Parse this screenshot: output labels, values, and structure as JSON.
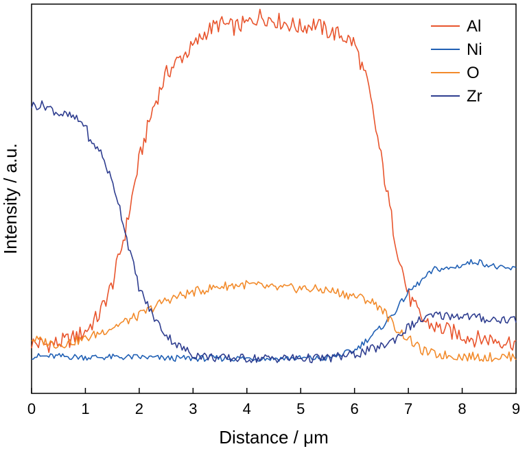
{
  "chart_data": {
    "type": "line",
    "title": "",
    "xlabel": "Distance / μm",
    "ylabel": "Intensity / a.u.",
    "xlim": [
      0,
      9
    ],
    "ylim": [
      0,
      1.0
    ],
    "x_ticks": [
      "0",
      "1",
      "2",
      "3",
      "4",
      "5",
      "6",
      "7",
      "8",
      "9"
    ],
    "y_ticks_shown": false,
    "grid": false,
    "legend_position": "top-right",
    "series": [
      {
        "name": "Al",
        "color": "#e8542c",
        "x": [
          0,
          0.25,
          0.5,
          0.75,
          1.0,
          1.25,
          1.5,
          1.75,
          2.0,
          2.25,
          2.5,
          2.75,
          3.0,
          3.25,
          3.5,
          3.75,
          4.0,
          4.25,
          4.5,
          4.75,
          5.0,
          5.25,
          5.5,
          5.75,
          6.0,
          6.25,
          6.5,
          6.75,
          7.0,
          7.25,
          7.5,
          7.75,
          8.0,
          8.25,
          8.5,
          8.75,
          9.0
        ],
        "y": [
          0.13,
          0.125,
          0.13,
          0.14,
          0.16,
          0.2,
          0.28,
          0.42,
          0.6,
          0.73,
          0.82,
          0.86,
          0.89,
          0.93,
          0.95,
          0.94,
          0.95,
          0.97,
          0.96,
          0.95,
          0.94,
          0.95,
          0.93,
          0.92,
          0.9,
          0.79,
          0.6,
          0.4,
          0.25,
          0.19,
          0.17,
          0.16,
          0.15,
          0.14,
          0.14,
          0.135,
          0.13
        ]
      },
      {
        "name": "Ni",
        "color": "#1f5fb4",
        "x": [
          0,
          0.5,
          1.0,
          1.5,
          2.0,
          2.5,
          3.0,
          3.5,
          4.0,
          4.5,
          5.0,
          5.5,
          6.0,
          6.25,
          6.5,
          6.75,
          7.0,
          7.25,
          7.5,
          7.75,
          8.0,
          8.25,
          8.5,
          8.75,
          9.0
        ],
        "y": [
          0.095,
          0.095,
          0.093,
          0.093,
          0.093,
          0.09,
          0.09,
          0.09,
          0.09,
          0.09,
          0.09,
          0.09,
          0.11,
          0.14,
          0.17,
          0.21,
          0.26,
          0.29,
          0.32,
          0.32,
          0.33,
          0.34,
          0.33,
          0.32,
          0.32
        ]
      },
      {
        "name": "O",
        "color": "#f28a2a",
        "x": [
          0,
          0.5,
          1.0,
          1.5,
          2.0,
          2.5,
          3.0,
          3.5,
          4.0,
          4.5,
          5.0,
          5.5,
          6.0,
          6.25,
          6.5,
          6.75,
          7.0,
          7.25,
          7.5,
          8.0,
          8.5,
          9.0
        ],
        "y": [
          0.14,
          0.125,
          0.14,
          0.17,
          0.2,
          0.24,
          0.26,
          0.275,
          0.28,
          0.27,
          0.27,
          0.265,
          0.25,
          0.24,
          0.22,
          0.17,
          0.14,
          0.11,
          0.1,
          0.095,
          0.093,
          0.095
        ]
      },
      {
        "name": "Zr",
        "color": "#2e3d8f",
        "x": [
          0,
          0.25,
          0.5,
          0.75,
          1.0,
          1.1,
          1.25,
          1.4,
          1.6,
          1.8,
          2.0,
          2.25,
          2.5,
          2.75,
          3.0,
          3.5,
          4.0,
          4.5,
          5.0,
          5.5,
          6.0,
          6.25,
          6.5,
          6.75,
          7.0,
          7.25,
          7.5,
          7.75,
          8.0,
          8.5,
          9.0
        ],
        "y": [
          0.74,
          0.74,
          0.72,
          0.71,
          0.69,
          0.64,
          0.63,
          0.58,
          0.5,
          0.38,
          0.27,
          0.2,
          0.15,
          0.12,
          0.1,
          0.09,
          0.09,
          0.09,
          0.09,
          0.09,
          0.1,
          0.11,
          0.12,
          0.14,
          0.17,
          0.19,
          0.2,
          0.2,
          0.2,
          0.19,
          0.19
        ]
      }
    ]
  }
}
